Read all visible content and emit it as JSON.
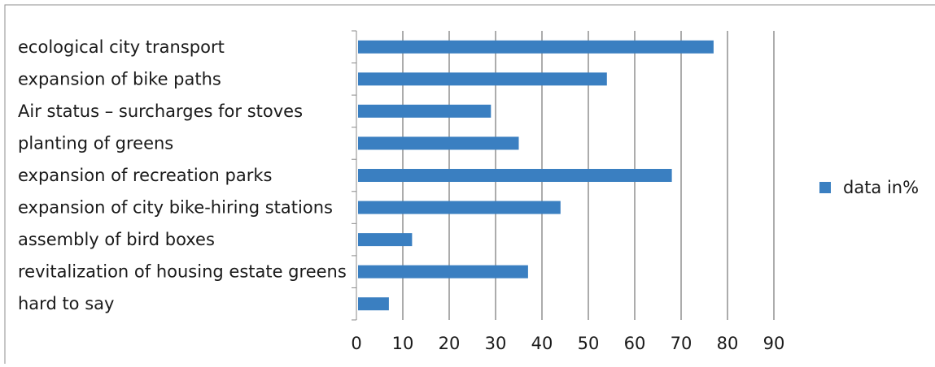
{
  "chart_data": {
    "type": "bar",
    "orientation": "horizontal",
    "categories": [
      "ecological city transport",
      "expansion of bike paths",
      "Air status – surcharges for stoves",
      "planting of greens",
      "expansion of recreation parks",
      "expansion of city bike-hiring stations",
      "assembly of bird boxes",
      "revitalization of housing estate greens",
      "hard to say"
    ],
    "series": [
      {
        "name": "data in%",
        "values": [
          77,
          54,
          29,
          35,
          68,
          44,
          12,
          37,
          7
        ]
      }
    ],
    "x_ticks": [
      "0",
      "10",
      "20",
      "30",
      "40",
      "50",
      "60",
      "70",
      "80",
      "90"
    ],
    "xlim": [
      0,
      90
    ],
    "grid": "vertical",
    "legend_position": "right",
    "colors": {
      "bar": "#3a7fc1",
      "grid": "#5a5a5a",
      "axis": "#8a8a8a",
      "border": "#8c8c8c"
    }
  }
}
